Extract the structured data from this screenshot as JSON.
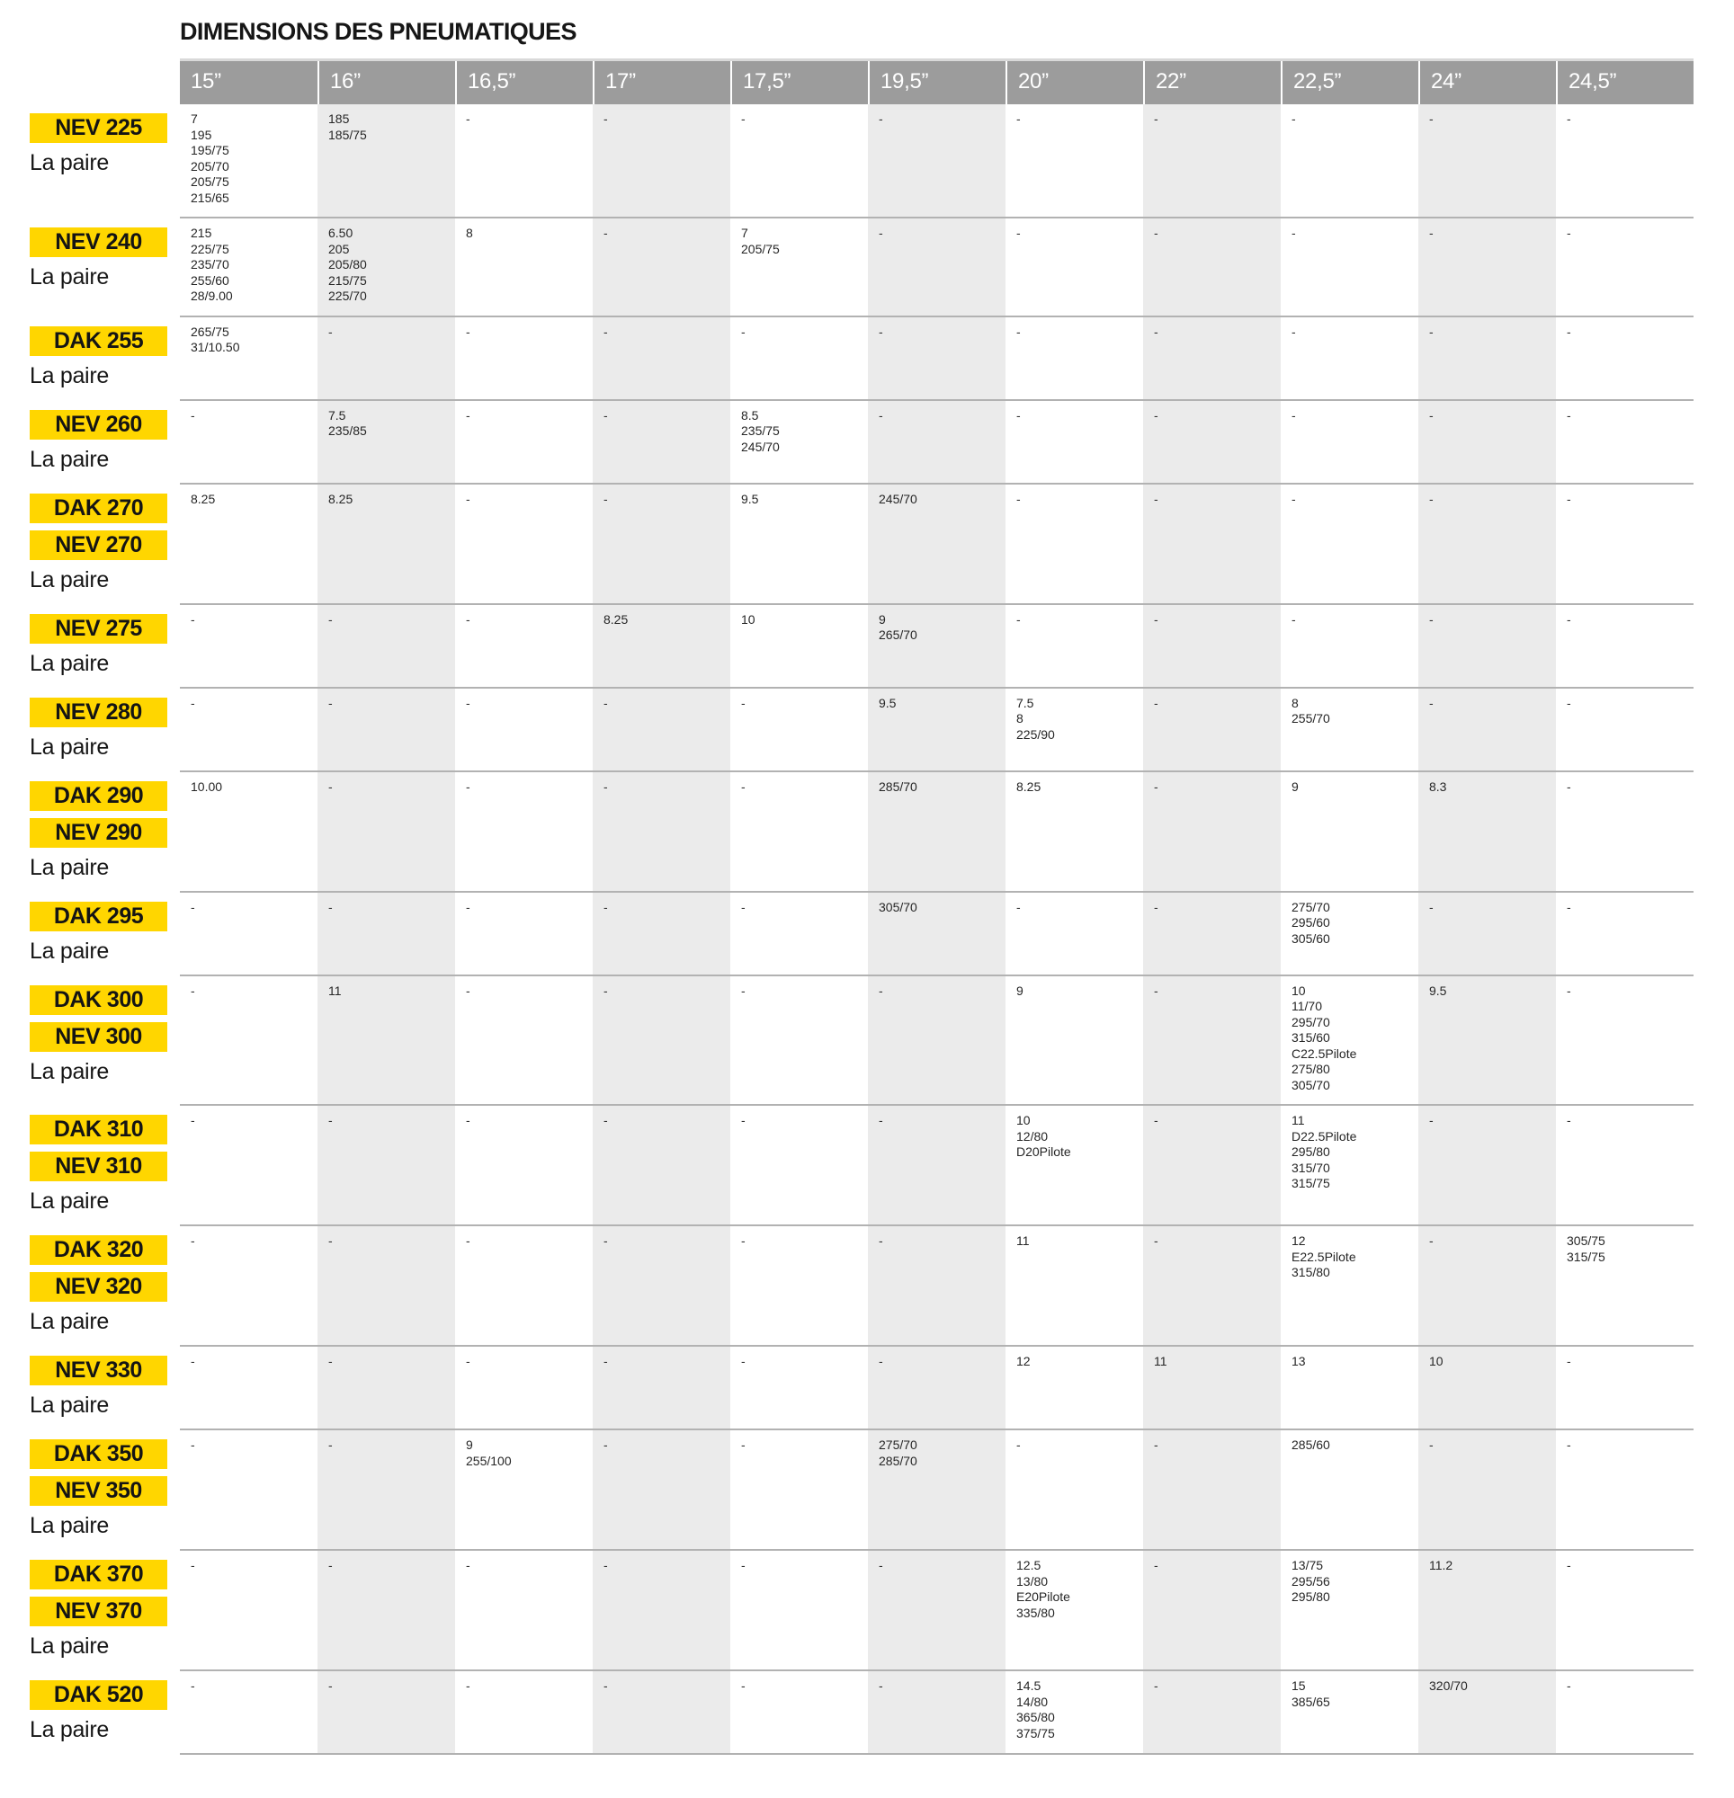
{
  "title": "DIMENSIONS DES PNEUMATIQUES",
  "pair_label": "La paire",
  "empty_marker": "-",
  "colors": {
    "badge_yellow": "#FFD600",
    "header_gray": "#9C9C9C",
    "stripe_gray": "#EBEBEB",
    "separator_gray": "#B2B2B2"
  },
  "columns": [
    "15”",
    "16”",
    "16,5”",
    "17”",
    "17,5”",
    "19,5”",
    "20”",
    "22”",
    "22,5”",
    "24”",
    "24,5”"
  ],
  "rows": [
    {
      "badges": [
        "NEV 225"
      ],
      "cells": [
        [
          "7",
          "195",
          "195/75",
          "205/70",
          "205/75",
          "215/65"
        ],
        [
          "185",
          "185/75"
        ],
        [],
        [],
        [],
        [],
        [],
        [],
        [],
        [],
        []
      ]
    },
    {
      "badges": [
        "NEV 240"
      ],
      "cells": [
        [
          "215",
          "225/75",
          "235/70",
          "255/60",
          "28/9.00"
        ],
        [
          "6.50",
          "205",
          "205/80",
          "215/75",
          "225/70"
        ],
        [
          "8"
        ],
        [],
        [
          "7",
          "205/75"
        ],
        [],
        [],
        [],
        [],
        [],
        []
      ]
    },
    {
      "badges": [
        "DAK 255"
      ],
      "cells": [
        [
          "265/75",
          "31/10.50"
        ],
        [],
        [],
        [],
        [],
        [],
        [],
        [],
        [],
        [],
        []
      ]
    },
    {
      "badges": [
        "NEV 260"
      ],
      "cells": [
        [],
        [
          "7.5",
          "235/85"
        ],
        [],
        [],
        [
          "8.5",
          "235/75",
          "245/70"
        ],
        [],
        [],
        [],
        [],
        [],
        []
      ]
    },
    {
      "badges": [
        "DAK 270",
        "NEV 270"
      ],
      "cells": [
        [
          "8.25"
        ],
        [
          "8.25"
        ],
        [],
        [],
        [
          "9.5"
        ],
        [
          "245/70"
        ],
        [],
        [],
        [],
        [],
        []
      ]
    },
    {
      "badges": [
        "NEV 275"
      ],
      "cells": [
        [],
        [],
        [],
        [
          "8.25"
        ],
        [
          "10"
        ],
        [
          "9",
          "265/70"
        ],
        [],
        [],
        [],
        [],
        []
      ]
    },
    {
      "badges": [
        "NEV 280"
      ],
      "cells": [
        [],
        [],
        [],
        [],
        [],
        [
          "9.5"
        ],
        [
          "7.5",
          "8",
          "225/90"
        ],
        [],
        [
          "8",
          "255/70"
        ],
        [],
        []
      ]
    },
    {
      "badges": [
        "DAK 290",
        "NEV 290"
      ],
      "cells": [
        [
          "10.00"
        ],
        [],
        [],
        [],
        [],
        [
          "285/70"
        ],
        [
          "8.25"
        ],
        [],
        [
          "9"
        ],
        [
          "8.3"
        ],
        []
      ]
    },
    {
      "badges": [
        "DAK 295"
      ],
      "cells": [
        [],
        [],
        [],
        [],
        [],
        [
          "305/70"
        ],
        [],
        [],
        [
          "275/70",
          "295/60",
          "305/60"
        ],
        [],
        []
      ]
    },
    {
      "badges": [
        "DAK 300",
        "NEV 300"
      ],
      "cells": [
        [],
        [
          "11"
        ],
        [],
        [],
        [],
        [],
        [
          "9"
        ],
        [],
        [
          "10",
          "11/70",
          "295/70",
          "315/60",
          "C22.5Pilote",
          "275/80",
          "305/70"
        ],
        [
          "9.5"
        ],
        []
      ]
    },
    {
      "badges": [
        "DAK 310",
        "NEV 310"
      ],
      "cells": [
        [],
        [],
        [],
        [],
        [],
        [],
        [
          "10",
          "12/80",
          "D20Pilote"
        ],
        [],
        [
          "11",
          "D22.5Pilote",
          "295/80",
          "315/70",
          "315/75"
        ],
        [],
        []
      ]
    },
    {
      "badges": [
        "DAK 320",
        "NEV 320"
      ],
      "cells": [
        [],
        [],
        [],
        [],
        [],
        [],
        [
          "11"
        ],
        [],
        [
          "12",
          "E22.5Pilote",
          "315/80"
        ],
        [],
        [
          "305/75",
          "315/75"
        ]
      ]
    },
    {
      "badges": [
        "NEV 330"
      ],
      "cells": [
        [],
        [],
        [],
        [],
        [],
        [],
        [
          "12"
        ],
        [
          "11"
        ],
        [
          "13"
        ],
        [
          "10"
        ],
        []
      ]
    },
    {
      "badges": [
        "DAK 350",
        "NEV 350"
      ],
      "cells": [
        [],
        [],
        [
          "9",
          "255/100"
        ],
        [],
        [],
        [
          "275/70",
          "285/70"
        ],
        [],
        [],
        [
          "285/60"
        ],
        [],
        []
      ]
    },
    {
      "badges": [
        "DAK 370",
        "NEV 370"
      ],
      "cells": [
        [],
        [],
        [],
        [],
        [],
        [],
        [
          "12.5",
          "13/80",
          "E20Pilote",
          "335/80"
        ],
        [],
        [
          "13/75",
          "295/56",
          "295/80"
        ],
        [
          "11.2"
        ],
        []
      ]
    },
    {
      "badges": [
        "DAK 520"
      ],
      "cells": [
        [],
        [],
        [],
        [],
        [],
        [],
        [
          "14.5",
          "14/80",
          "365/80",
          "375/75"
        ],
        [],
        [
          "15",
          "385/65"
        ],
        [
          "320/70"
        ],
        []
      ]
    }
  ]
}
